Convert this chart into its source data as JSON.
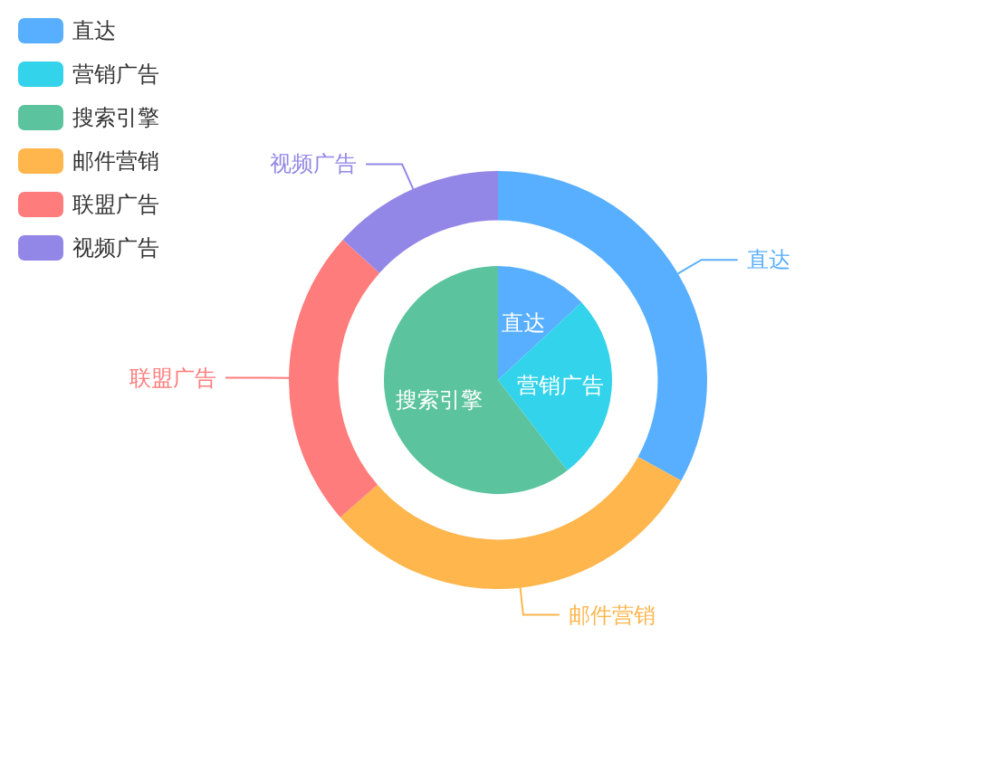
{
  "chart_data": {
    "type": "donut",
    "categories": [
      "直达",
      "营销广告",
      "搜索引擎",
      "邮件营销",
      "联盟广告",
      "视频广告"
    ],
    "colors": [
      "#58afff",
      "#32d3eb",
      "#5bc49f",
      "#feb64d",
      "#ff7c7c",
      "#9287e7"
    ],
    "legend": "top left",
    "series": [
      {
        "type": "pie",
        "values": [
          13.1,
          26.5,
          60.4,
          null,
          null,
          null
        ]
      },
      {
        "values": [
          33.0,
          null,
          null,
          30.6,
          23.1,
          13.3
        ]
      }
    ]
  }
}
